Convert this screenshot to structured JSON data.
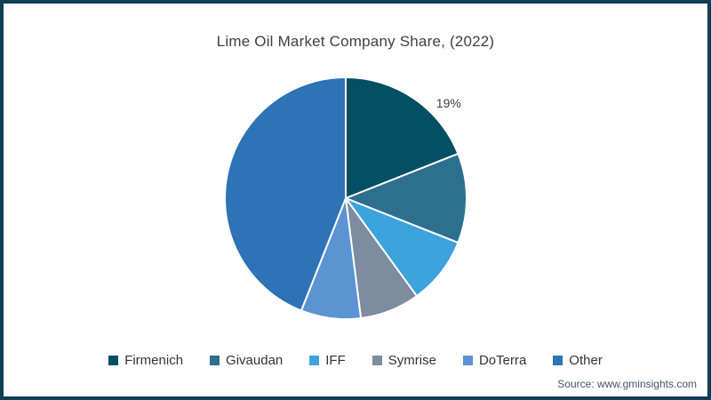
{
  "title": "Lime Oil Market Company Share, (2022)",
  "source": "Source: www.gminsights.com",
  "frame": {
    "border_color": "#123E58",
    "background_color": "#FFFFFF"
  },
  "text_colors": {
    "title": "#3F3F3F",
    "legend": "#333333",
    "slice_label": "#404040",
    "source": "#44546A"
  },
  "chart_data": {
    "type": "pie",
    "title": "Lime Oil Market Company Share, (2022)",
    "start_angle_deg": 0,
    "direction": "clockwise",
    "legend_position": "bottom",
    "separator_color": "#FFFFFF",
    "visible_data_labels": [
      "19%"
    ],
    "slices": [
      {
        "name": "Firmenich",
        "value": 19,
        "color": "#034F63",
        "label": "19%"
      },
      {
        "name": "Givaudan",
        "value": 12,
        "color": "#2D6F8E",
        "label": ""
      },
      {
        "name": "IFF",
        "value": 9,
        "color": "#3DA3DC",
        "label": ""
      },
      {
        "name": "Symrise",
        "value": 8,
        "color": "#7D8CA0",
        "label": ""
      },
      {
        "name": "DoTerra",
        "value": 8,
        "color": "#5C93D3",
        "label": ""
      },
      {
        "name": "Other",
        "value": 44,
        "color": "#2E73B5",
        "label": ""
      }
    ]
  }
}
